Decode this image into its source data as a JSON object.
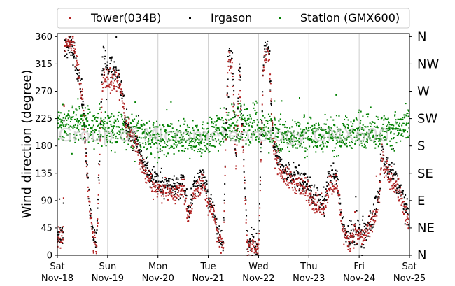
{
  "chart_data": {
    "type": "scatter",
    "title": "",
    "xlabel": "",
    "ylabel": "Wind direction (degree)",
    "ylim": [
      0,
      365
    ],
    "yticks": [
      0,
      45,
      90,
      135,
      180,
      225,
      270,
      315,
      360
    ],
    "xlim": [
      0,
      7
    ],
    "xticks": [
      {
        "day": "Sat",
        "date": "Nov-18"
      },
      {
        "day": "Sun",
        "date": "Nov-19"
      },
      {
        "day": "Mon",
        "date": "Nov-20"
      },
      {
        "day": "Tue",
        "date": "Nov-21"
      },
      {
        "day": "Wed",
        "date": "Nov-22"
      },
      {
        "day": "Thu",
        "date": "Nov-23"
      },
      {
        "day": "Fri",
        "date": "Nov-24"
      },
      {
        "day": "Sat",
        "date": "Nov-25"
      }
    ],
    "secondary_y": {
      "labels": [
        "N",
        "NE",
        "E",
        "SE",
        "S",
        "SW",
        "W",
        "NW",
        "N"
      ],
      "values": [
        0,
        45,
        90,
        135,
        180,
        225,
        270,
        315,
        360
      ]
    },
    "grid": "vertical",
    "legend": "top",
    "watermark": "Group of Micrometeorology  GMX600",
    "series": [
      {
        "name": "Tower(034B)",
        "color": "#b22222",
        "trend": [
          [
            0,
            30
          ],
          [
            0.12,
            32
          ],
          [
            0.14,
            345
          ],
          [
            0.3,
            355
          ],
          [
            0.42,
            300
          ],
          [
            0.5,
            260
          ],
          [
            0.6,
            120
          ],
          [
            0.65,
            70
          ],
          [
            0.72,
            20
          ],
          [
            0.78,
            15
          ],
          [
            0.9,
            290
          ],
          [
            1.05,
            285
          ],
          [
            1.2,
            280
          ],
          [
            1.3,
            260
          ],
          [
            1.35,
            220
          ],
          [
            1.45,
            200
          ],
          [
            1.6,
            175
          ],
          [
            1.7,
            140
          ],
          [
            1.9,
            115
          ],
          [
            2.2,
            105
          ],
          [
            2.4,
            100
          ],
          [
            2.5,
            115
          ],
          [
            2.6,
            60
          ],
          [
            2.7,
            100
          ],
          [
            2.9,
            120
          ],
          [
            3.0,
            85
          ],
          [
            3.1,
            70
          ],
          [
            3.2,
            30
          ],
          [
            3.3,
            10
          ],
          [
            3.35,
            200
          ],
          [
            3.4,
            320
          ],
          [
            3.48,
            310
          ],
          [
            3.55,
            150
          ],
          [
            3.62,
            300
          ],
          [
            3.72,
            120
          ],
          [
            3.78,
            10
          ],
          [
            3.9,
            20
          ],
          [
            4.0,
            5
          ],
          [
            4.1,
            320
          ],
          [
            4.2,
            340
          ],
          [
            4.3,
            170
          ],
          [
            4.5,
            130
          ],
          [
            4.7,
            120
          ],
          [
            4.9,
            110
          ],
          [
            5.0,
            100
          ],
          [
            5.2,
            80
          ],
          [
            5.3,
            75
          ],
          [
            5.4,
            115
          ],
          [
            5.55,
            120
          ],
          [
            5.6,
            90
          ],
          [
            5.7,
            30
          ],
          [
            5.8,
            25
          ],
          [
            5.9,
            35
          ],
          [
            6.1,
            30
          ],
          [
            6.25,
            45
          ],
          [
            6.4,
            90
          ],
          [
            6.45,
            170
          ],
          [
            6.5,
            140
          ],
          [
            6.7,
            120
          ],
          [
            6.85,
            90
          ],
          [
            7.0,
            45
          ]
        ],
        "spread": 14
      },
      {
        "name": "Irgason",
        "color": "#000000",
        "trend": [
          [
            0,
            35
          ],
          [
            0.12,
            30
          ],
          [
            0.14,
            340
          ],
          [
            0.3,
            340
          ],
          [
            0.42,
            300
          ],
          [
            0.5,
            255
          ],
          [
            0.6,
            130
          ],
          [
            0.65,
            75
          ],
          [
            0.72,
            25
          ],
          [
            0.78,
            20
          ],
          [
            0.9,
            320
          ],
          [
            1.05,
            310
          ],
          [
            1.2,
            300
          ],
          [
            1.3,
            270
          ],
          [
            1.35,
            220
          ],
          [
            1.45,
            200
          ],
          [
            1.6,
            180
          ],
          [
            1.7,
            150
          ],
          [
            1.9,
            125
          ],
          [
            2.2,
            115
          ],
          [
            2.4,
            110
          ],
          [
            2.5,
            125
          ],
          [
            2.6,
            70
          ],
          [
            2.7,
            110
          ],
          [
            2.9,
            130
          ],
          [
            3.0,
            95
          ],
          [
            3.1,
            80
          ],
          [
            3.2,
            40
          ],
          [
            3.3,
            15
          ],
          [
            3.35,
            200
          ],
          [
            3.4,
            330
          ],
          [
            3.48,
            320
          ],
          [
            3.55,
            160
          ],
          [
            3.62,
            320
          ],
          [
            3.72,
            130
          ],
          [
            3.78,
            15
          ],
          [
            3.9,
            25
          ],
          [
            4.0,
            10
          ],
          [
            4.1,
            330
          ],
          [
            4.2,
            345
          ],
          [
            4.3,
            180
          ],
          [
            4.5,
            140
          ],
          [
            4.7,
            130
          ],
          [
            4.9,
            120
          ],
          [
            5.0,
            110
          ],
          [
            5.2,
            90
          ],
          [
            5.3,
            85
          ],
          [
            5.4,
            125
          ],
          [
            5.55,
            135
          ],
          [
            5.6,
            100
          ],
          [
            5.7,
            35
          ],
          [
            5.8,
            30
          ],
          [
            5.9,
            40
          ],
          [
            6.1,
            35
          ],
          [
            6.25,
            55
          ],
          [
            6.4,
            100
          ],
          [
            6.45,
            180
          ],
          [
            6.5,
            150
          ],
          [
            6.7,
            130
          ],
          [
            6.85,
            100
          ],
          [
            7.0,
            55
          ]
        ],
        "spread": 16
      },
      {
        "name": "Station (GMX600)",
        "color": "#008000",
        "trend": [
          [
            0,
            215
          ],
          [
            0.5,
            220
          ],
          [
            1.0,
            210
          ],
          [
            1.5,
            205
          ],
          [
            2.0,
            190
          ],
          [
            2.5,
            190
          ],
          [
            3.0,
            195
          ],
          [
            3.5,
            215
          ],
          [
            4.0,
            215
          ],
          [
            4.3,
            200
          ],
          [
            4.5,
            195
          ],
          [
            5.0,
            200
          ],
          [
            5.5,
            195
          ],
          [
            6.0,
            205
          ],
          [
            6.5,
            205
          ],
          [
            7.0,
            210
          ]
        ],
        "spread": 22
      }
    ]
  }
}
